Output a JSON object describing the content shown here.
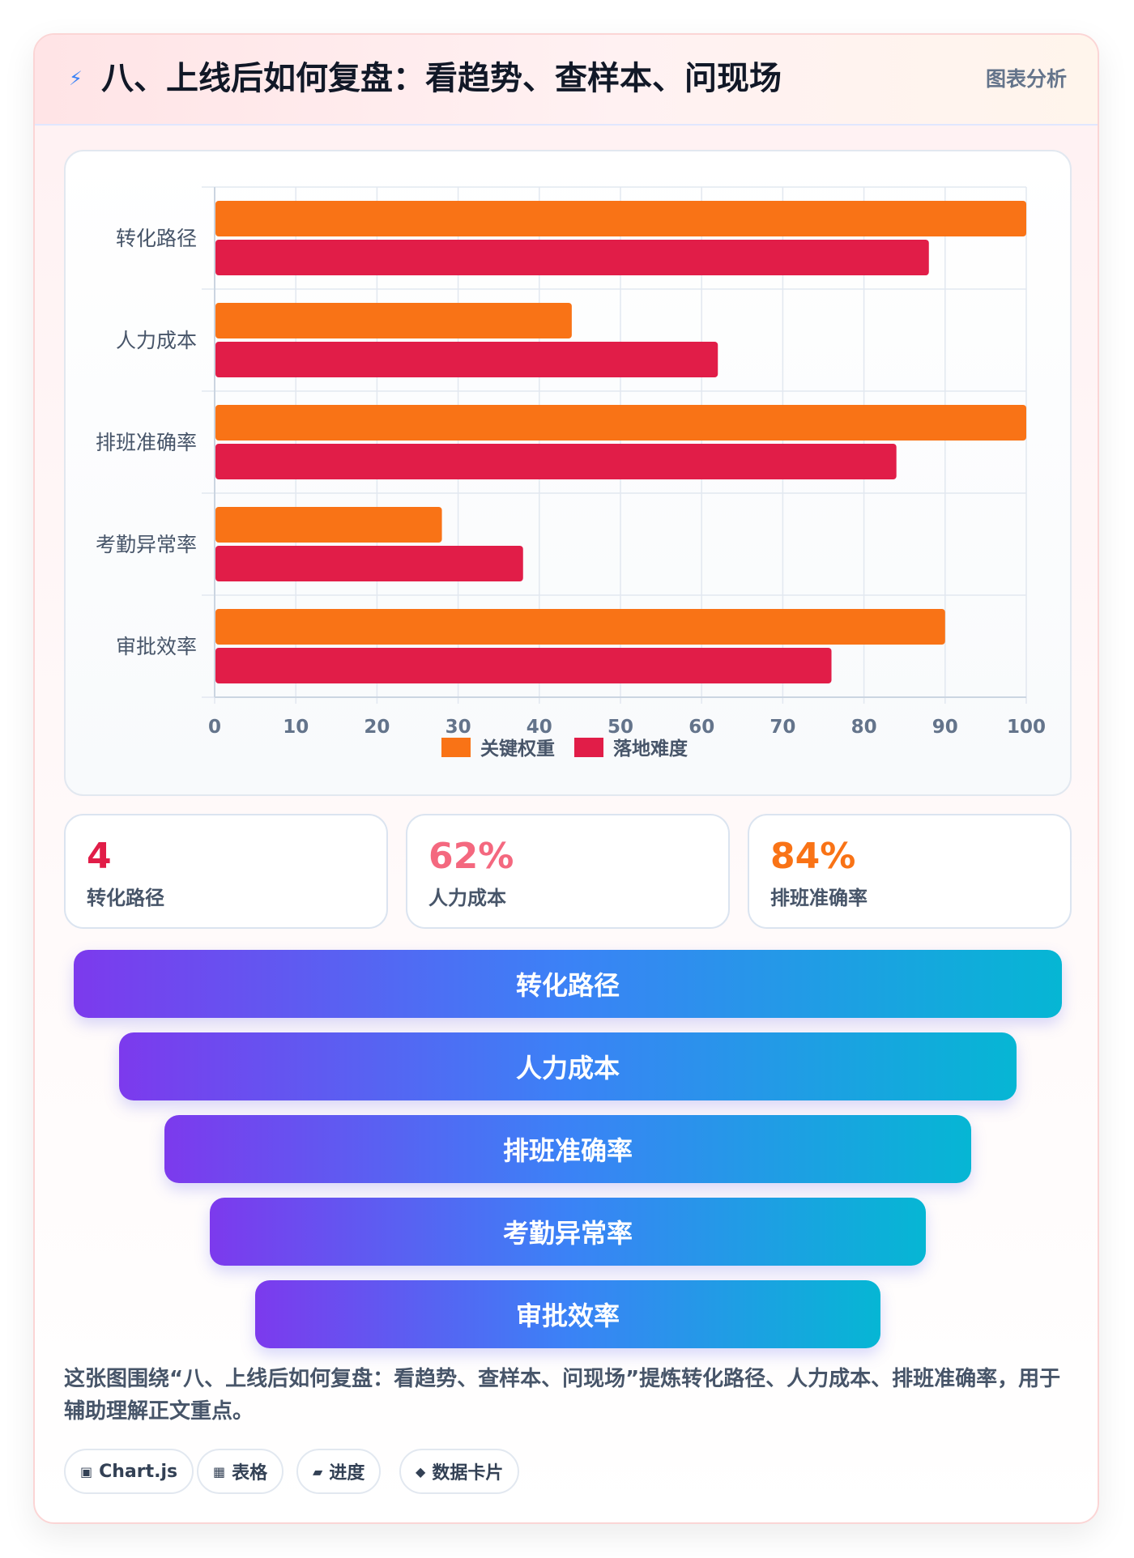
{
  "header": {
    "icon": "lightning-icon",
    "title": "八、上线后如何复盘：看趋势、查样本、问现场",
    "tag": "图表分析"
  },
  "chart_data": {
    "type": "bar",
    "orientation": "horizontal",
    "categories": [
      "转化路径",
      "人力成本",
      "排班准确率",
      "考勤异常率",
      "审批效率"
    ],
    "series": [
      {
        "name": "关键权重",
        "color": "#f97316",
        "values": [
          100,
          44,
          100,
          28,
          90
        ]
      },
      {
        "name": "落地难度",
        "color": "#e11d48",
        "values": [
          88,
          62,
          84,
          38,
          76
        ]
      }
    ],
    "xlim": [
      0,
      100
    ],
    "xticks": [
      0,
      10,
      20,
      30,
      40,
      50,
      60,
      70,
      80,
      90,
      100
    ],
    "grid": true,
    "legend": "bottom"
  },
  "stats": [
    {
      "value": "4",
      "label": "转化路径",
      "color": "#e11d48"
    },
    {
      "value": "62%",
      "label": "人力成本",
      "color": "#f4687f"
    },
    {
      "value": "84%",
      "label": "排班准确率",
      "color": "#f97316"
    }
  ],
  "funnel": [
    "转化路径",
    "人力成本",
    "排班准确率",
    "考勤异常率",
    "审批效率"
  ],
  "description": "这张图围绕“八、上线后如何复盘：看趋势、查样本、问现场”提炼转化路径、人力成本、排班准确率，用于辅助理解正文重点。",
  "chips": [
    {
      "icon": "chart-icon",
      "glyph": "▣",
      "label": "Chart.js"
    },
    {
      "icon": "table-icon",
      "glyph": "▦",
      "label": "表格"
    },
    {
      "icon": "progress-icon",
      "glyph": "▰",
      "label": "进度"
    },
    {
      "icon": "card-icon",
      "glyph": "◆",
      "label": "数据卡片"
    }
  ]
}
